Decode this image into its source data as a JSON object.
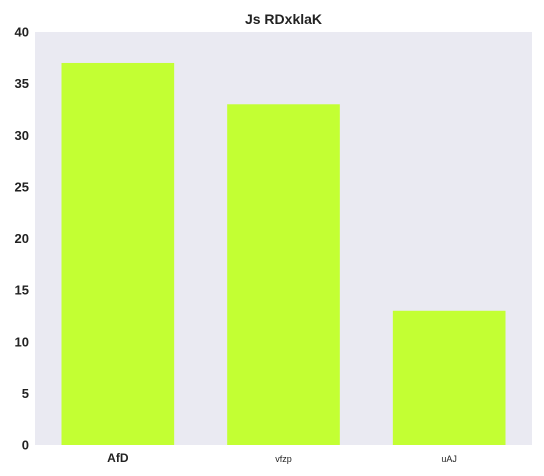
{
  "chart_data": {
    "type": "bar",
    "title": "Js RDxklaK",
    "xlabel": "",
    "ylabel": "",
    "categories": [
      "AfD",
      "vfzp",
      "uAJ"
    ],
    "values": [
      37,
      33,
      13
    ],
    "ylim": [
      0,
      40
    ],
    "yticks": [
      0,
      5,
      10,
      15,
      20,
      25,
      30,
      35,
      40
    ],
    "grid": false,
    "legend": "none",
    "colors": {
      "bar": "#c3ff33",
      "plot_background": "#eaeaf2",
      "text": "#222222"
    }
  }
}
